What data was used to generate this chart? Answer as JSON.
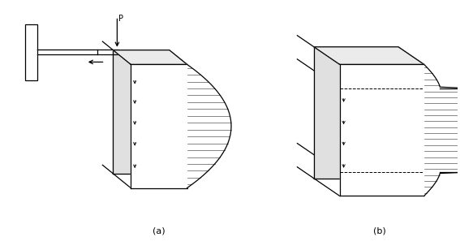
{
  "bg_color": "#ffffff",
  "line_color": "#000000",
  "fig_width": 5.67,
  "fig_height": 3.08,
  "dpi": 100,
  "label_a": "(a)",
  "label_b": "(b)"
}
